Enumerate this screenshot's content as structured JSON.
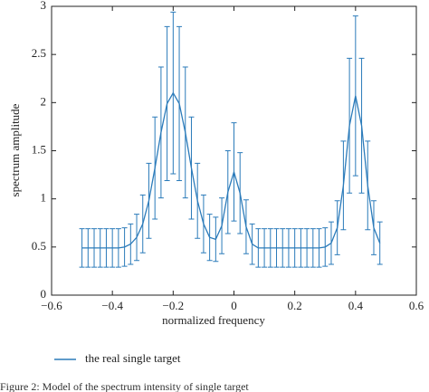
{
  "chart_data": {
    "type": "errorbar-line",
    "xlabel": "normalized frequency",
    "ylabel": "spectrum amplitude",
    "caption": "Figure 2: Model of the spectrum intensity of single target",
    "xlim": [
      -0.6,
      0.6
    ],
    "xticks": [
      {
        "value": -0.6,
        "label": "−0.6"
      },
      {
        "value": -0.4,
        "label": "−0.4"
      },
      {
        "value": -0.2,
        "label": "−0.2"
      },
      0,
      0.2,
      0.4,
      0.6
    ],
    "ylim": [
      0,
      3
    ],
    "yticks": [
      0,
      0.5,
      1,
      1.5,
      2,
      2.5,
      3
    ],
    "legend": "bottom",
    "x": [
      -0.5,
      -0.48,
      -0.46,
      -0.44,
      -0.42,
      -0.4,
      -0.38,
      -0.36,
      -0.34,
      -0.32,
      -0.3,
      -0.28,
      -0.26,
      -0.24,
      -0.22,
      -0.2,
      -0.18,
      -0.16,
      -0.14,
      -0.12,
      -0.1,
      -0.08,
      -0.06,
      -0.04,
      -0.02,
      0,
      0.02,
      0.04,
      0.06,
      0.08,
      0.1,
      0.12,
      0.14,
      0.16,
      0.18,
      0.2,
      0.22,
      0.24,
      0.26,
      0.28,
      0.3,
      0.32,
      0.34,
      0.36,
      0.38,
      0.4,
      0.42,
      0.44,
      0.46,
      0.48
    ],
    "series": [
      {
        "name": "the real single target",
        "color": "#2b7bba",
        "values": [
          0.49,
          0.49,
          0.49,
          0.49,
          0.49,
          0.49,
          0.49,
          0.5,
          0.53,
          0.6,
          0.74,
          0.98,
          1.32,
          1.69,
          1.99,
          2.1,
          1.99,
          1.69,
          1.32,
          0.98,
          0.74,
          0.6,
          0.58,
          0.72,
          1.07,
          1.28,
          1.06,
          0.71,
          0.53,
          0.49,
          0.49,
          0.49,
          0.49,
          0.49,
          0.49,
          0.49,
          0.49,
          0.49,
          0.49,
          0.49,
          0.5,
          0.54,
          0.7,
          1.14,
          1.76,
          2.07,
          1.76,
          1.14,
          0.7,
          0.54
        ],
        "errors": [
          0.2,
          0.2,
          0.2,
          0.2,
          0.2,
          0.2,
          0.2,
          0.2,
          0.21,
          0.24,
          0.3,
          0.39,
          0.53,
          0.68,
          0.8,
          0.84,
          0.8,
          0.68,
          0.53,
          0.39,
          0.3,
          0.24,
          0.23,
          0.29,
          0.43,
          0.51,
          0.42,
          0.28,
          0.21,
          0.2,
          0.2,
          0.2,
          0.2,
          0.2,
          0.2,
          0.2,
          0.2,
          0.2,
          0.2,
          0.2,
          0.2,
          0.22,
          0.28,
          0.46,
          0.7,
          0.83,
          0.7,
          0.46,
          0.28,
          0.22
        ]
      }
    ]
  }
}
